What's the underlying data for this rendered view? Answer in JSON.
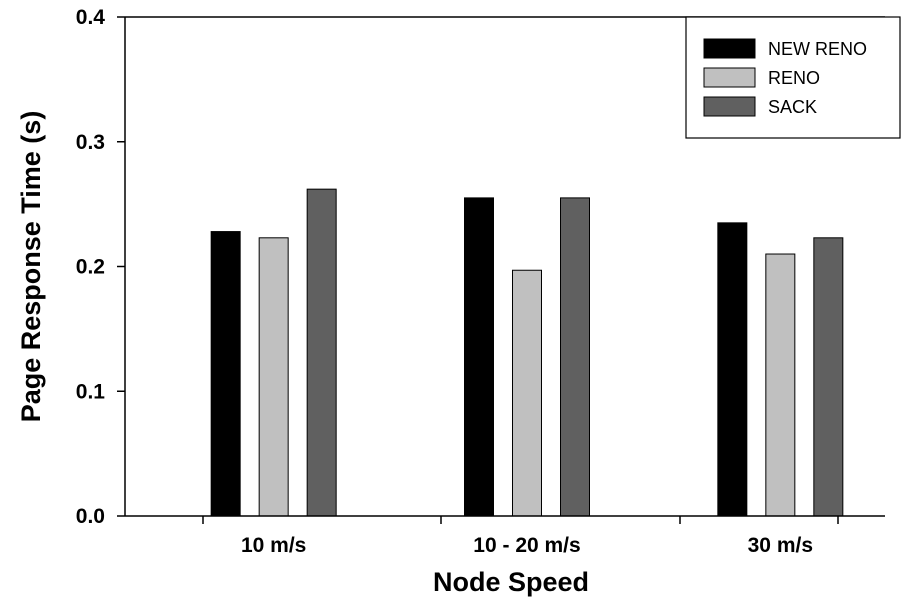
{
  "chart_data": {
    "type": "bar",
    "title": "",
    "xlabel": "Node Speed",
    "ylabel": "Page Response Time (s)",
    "categories": [
      "10 m/s",
      "10 - 20 m/s",
      "30 m/s"
    ],
    "ylim": [
      0,
      0.4
    ],
    "yticks": [
      0.0,
      0.1,
      0.2,
      0.3,
      0.4
    ],
    "ytick_labels": [
      "0.0",
      "0.1",
      "0.2",
      "0.3",
      "0.4"
    ],
    "grid": false,
    "legend_position": "top-right",
    "series": [
      {
        "name": "NEW RENO",
        "color": "#000000",
        "values": [
          0.228,
          0.255,
          0.235
        ]
      },
      {
        "name": "RENO",
        "color": "#c0c0c0",
        "values": [
          0.223,
          0.197,
          0.21
        ]
      },
      {
        "name": "SACK",
        "color": "#606060",
        "values": [
          0.262,
          0.255,
          0.223
        ]
      }
    ]
  }
}
